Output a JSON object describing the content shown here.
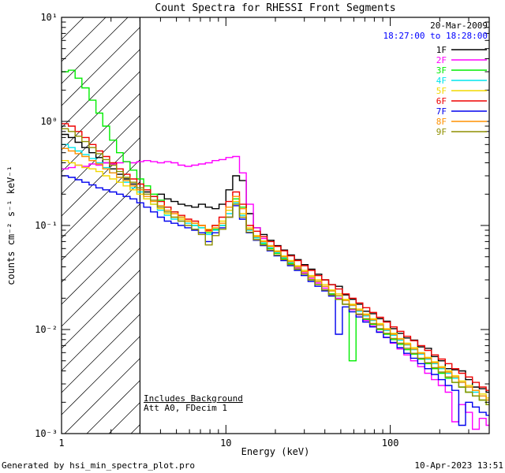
{
  "annotations": {
    "date": "20-Mar-2009",
    "time_range": "18:27:00 to 18:28:00",
    "background_note": "Includes Background",
    "attenuator_note": "Att A0, FDecim 1"
  },
  "footer": {
    "generator": "Generated by hsi_min_spectra_plot.pro",
    "datetime": "10-Apr-2023 13:51"
  },
  "colors": {
    "axis": "#000000",
    "background": "#ffffff",
    "time_text": "#0000ff"
  },
  "chart_data": {
    "type": "line",
    "step": true,
    "title": "Count Spectra for RHESSI Front Segments",
    "xlabel": "Energy (keV)",
    "ylabel": "counts cm⁻² s⁻¹ keV⁻¹",
    "xscale": "log",
    "yscale": "log",
    "xlim": [
      1,
      400
    ],
    "ylim": [
      0.001,
      10
    ],
    "grid": false,
    "legend_position": "top-right",
    "hatch_region_kev": [
      1,
      3
    ],
    "x_ticks": [
      [
        1,
        "1"
      ],
      [
        10,
        "10"
      ],
      [
        100,
        "100"
      ]
    ],
    "y_ticks": [
      [
        10,
        "10¹"
      ],
      [
        1,
        "10⁰"
      ],
      [
        0.1,
        "10⁻¹"
      ],
      [
        0.01,
        "10⁻²"
      ],
      [
        0.001,
        "10⁻³"
      ]
    ],
    "energies_kev": [
      1.0,
      1.1,
      1.21,
      1.33,
      1.47,
      1.62,
      1.78,
      1.96,
      2.16,
      2.37,
      2.61,
      2.87,
      3.16,
      3.48,
      3.83,
      4.22,
      4.64,
      5.11,
      5.62,
      6.19,
      6.81,
      7.5,
      8.25,
      9.08,
      10.0,
      11.0,
      12.1,
      13.3,
      14.7,
      16.2,
      17.8,
      19.6,
      21.6,
      23.7,
      26.1,
      28.7,
      31.6,
      34.8,
      38.3,
      42.2,
      46.4,
      51.1,
      56.2,
      61.9,
      68.1,
      75.0,
      82.5,
      90.8,
      100,
      110,
      121,
      133,
      147,
      162,
      178,
      196,
      216,
      237,
      261,
      287,
      316,
      348,
      383
    ],
    "series": [
      {
        "name": "1F",
        "color": "#000000",
        "values": [
          0.75,
          0.7,
          0.63,
          0.56,
          0.5,
          0.45,
          0.4,
          0.35,
          0.31,
          0.28,
          0.25,
          0.22,
          0.21,
          0.19,
          0.2,
          0.18,
          0.17,
          0.16,
          0.155,
          0.15,
          0.16,
          0.15,
          0.145,
          0.16,
          0.22,
          0.3,
          0.27,
          0.13,
          0.095,
          0.082,
          0.072,
          0.064,
          0.058,
          0.052,
          0.047,
          0.042,
          0.038,
          0.034,
          0.03,
          0.027,
          0.026,
          0.0215,
          0.0195,
          0.0175,
          0.015,
          0.0142,
          0.0127,
          0.012,
          0.0102,
          0.0092,
          0.0083,
          0.0079,
          0.0068,
          0.0066,
          0.0055,
          0.005,
          0.0042,
          0.0041,
          0.004,
          0.0033,
          0.0028,
          0.0027,
          0.0025
        ]
      },
      {
        "name": "2F",
        "color": "#ff00ff",
        "values": [
          0.35,
          0.36,
          0.38,
          0.37,
          0.39,
          0.38,
          0.4,
          0.39,
          0.4,
          0.41,
          0.4,
          0.41,
          0.42,
          0.41,
          0.4,
          0.41,
          0.4,
          0.38,
          0.37,
          0.38,
          0.39,
          0.4,
          0.42,
          0.43,
          0.45,
          0.46,
          0.32,
          0.16,
          0.095,
          0.075,
          0.064,
          0.056,
          0.049,
          0.044,
          0.039,
          0.035,
          0.031,
          0.028,
          0.025,
          0.022,
          0.02,
          0.0175,
          0.0155,
          0.0138,
          0.0122,
          0.0108,
          0.0095,
          0.0084,
          0.0074,
          0.0065,
          0.0057,
          0.005,
          0.0044,
          0.0038,
          0.0033,
          0.0029,
          0.0025,
          0.0013,
          0.0019,
          0.0016,
          0.0011,
          0.0014,
          0.0012
        ]
      },
      {
        "name": "3F",
        "color": "#00ee00",
        "values": [
          3.0,
          3.1,
          2.6,
          2.1,
          1.6,
          1.2,
          0.9,
          0.66,
          0.5,
          0.41,
          0.34,
          0.28,
          0.24,
          0.2,
          0.175,
          0.15,
          0.135,
          0.12,
          0.11,
          0.1,
          0.095,
          0.085,
          0.092,
          0.1,
          0.14,
          0.18,
          0.15,
          0.092,
          0.076,
          0.067,
          0.06,
          0.054,
          0.048,
          0.043,
          0.038,
          0.034,
          0.03,
          0.027,
          0.024,
          0.022,
          0.0195,
          0.0175,
          0.005,
          0.014,
          0.0125,
          0.0112,
          0.01,
          0.009,
          0.008,
          0.0072,
          0.0064,
          0.0058,
          0.0052,
          0.0047,
          0.0042,
          0.0038,
          0.0034,
          0.0031,
          0.0028,
          0.0025,
          0.0023,
          0.0021,
          0.0019
        ]
      },
      {
        "name": "4F",
        "color": "#00e5ee",
        "values": [
          0.6,
          0.56,
          0.52,
          0.48,
          0.44,
          0.4,
          0.36,
          0.32,
          0.29,
          0.26,
          0.23,
          0.21,
          0.18,
          0.16,
          0.14,
          0.125,
          0.115,
          0.11,
          0.105,
          0.1,
          0.095,
          0.082,
          0.09,
          0.1,
          0.13,
          0.165,
          0.125,
          0.09,
          0.076,
          0.068,
          0.061,
          0.055,
          0.049,
          0.044,
          0.04,
          0.036,
          0.032,
          0.029,
          0.026,
          0.0235,
          0.021,
          0.019,
          0.017,
          0.015,
          0.0135,
          0.0122,
          0.011,
          0.0098,
          0.0088,
          0.0079,
          0.0071,
          0.0064,
          0.0058,
          0.0052,
          0.0047,
          0.0042,
          0.0038,
          0.0034,
          0.0031,
          0.0028,
          0.0025,
          0.0023,
          0.0021
        ]
      },
      {
        "name": "5F",
        "color": "#f2d800",
        "values": [
          0.42,
          0.4,
          0.38,
          0.36,
          0.35,
          0.33,
          0.3,
          0.28,
          0.26,
          0.24,
          0.22,
          0.2,
          0.18,
          0.16,
          0.145,
          0.13,
          0.12,
          0.115,
          0.11,
          0.105,
          0.1,
          0.092,
          0.1,
          0.11,
          0.14,
          0.17,
          0.13,
          0.095,
          0.08,
          0.071,
          0.064,
          0.057,
          0.051,
          0.046,
          0.041,
          0.037,
          0.033,
          0.03,
          0.027,
          0.024,
          0.022,
          0.0195,
          0.0175,
          0.0157,
          0.0141,
          0.0127,
          0.0114,
          0.0102,
          0.0092,
          0.0082,
          0.0074,
          0.0067,
          0.006,
          0.0054,
          0.0049,
          0.0044,
          0.004,
          0.0036,
          0.0032,
          0.0029,
          0.0026,
          0.0024,
          0.0022
        ]
      },
      {
        "name": "6F",
        "color": "#ee0000",
        "values": [
          0.95,
          0.9,
          0.8,
          0.7,
          0.6,
          0.52,
          0.46,
          0.4,
          0.35,
          0.31,
          0.28,
          0.25,
          0.22,
          0.19,
          0.17,
          0.15,
          0.135,
          0.125,
          0.115,
          0.11,
          0.1,
          0.09,
          0.1,
          0.12,
          0.17,
          0.21,
          0.16,
          0.1,
          0.088,
          0.078,
          0.07,
          0.063,
          0.057,
          0.051,
          0.046,
          0.041,
          0.037,
          0.033,
          0.03,
          0.027,
          0.0245,
          0.022,
          0.02,
          0.018,
          0.0162,
          0.0146,
          0.0131,
          0.0118,
          0.0106,
          0.0096,
          0.0086,
          0.0078,
          0.007,
          0.0063,
          0.0057,
          0.0052,
          0.0047,
          0.0042,
          0.0038,
          0.0035,
          0.0031,
          0.0028,
          0.0026
        ]
      },
      {
        "name": "7F",
        "color": "#0000ee",
        "values": [
          0.3,
          0.29,
          0.275,
          0.26,
          0.245,
          0.23,
          0.22,
          0.21,
          0.2,
          0.19,
          0.18,
          0.165,
          0.15,
          0.135,
          0.12,
          0.11,
          0.105,
          0.1,
          0.095,
          0.09,
          0.085,
          0.07,
          0.085,
          0.095,
          0.12,
          0.155,
          0.115,
          0.085,
          0.072,
          0.064,
          0.057,
          0.051,
          0.046,
          0.041,
          0.037,
          0.033,
          0.029,
          0.026,
          0.0235,
          0.021,
          0.009,
          0.0165,
          0.0148,
          0.0132,
          0.0118,
          0.0106,
          0.0094,
          0.0084,
          0.0075,
          0.0067,
          0.0059,
          0.0053,
          0.0047,
          0.0042,
          0.0037,
          0.0033,
          0.0029,
          0.0026,
          0.0012,
          0.002,
          0.0018,
          0.0016,
          0.0015
        ]
      },
      {
        "name": "8F",
        "color": "#ff9100",
        "values": [
          0.55,
          0.52,
          0.49,
          0.46,
          0.42,
          0.39,
          0.35,
          0.32,
          0.29,
          0.27,
          0.24,
          0.22,
          0.19,
          0.17,
          0.155,
          0.14,
          0.13,
          0.12,
          0.11,
          0.105,
          0.1,
          0.088,
          0.095,
          0.105,
          0.15,
          0.19,
          0.145,
          0.092,
          0.078,
          0.07,
          0.063,
          0.056,
          0.05,
          0.045,
          0.04,
          0.036,
          0.032,
          0.029,
          0.026,
          0.0235,
          0.0212,
          0.019,
          0.0171,
          0.0153,
          0.0138,
          0.0124,
          0.0111,
          0.01,
          0.009,
          0.0081,
          0.0072,
          0.0065,
          0.0059,
          0.0053,
          0.0048,
          0.0043,
          0.0039,
          0.0035,
          0.0031,
          0.0028,
          0.0026,
          0.0023,
          0.0021
        ]
      },
      {
        "name": "9F",
        "color": "#8f8f00",
        "values": [
          0.85,
          0.8,
          0.72,
          0.64,
          0.56,
          0.49,
          0.43,
          0.38,
          0.33,
          0.29,
          0.26,
          0.23,
          0.2,
          0.175,
          0.15,
          0.135,
          0.12,
          0.11,
          0.1,
          0.092,
          0.082,
          0.065,
          0.08,
          0.092,
          0.12,
          0.16,
          0.12,
          0.086,
          0.073,
          0.065,
          0.058,
          0.052,
          0.047,
          0.042,
          0.038,
          0.034,
          0.03,
          0.027,
          0.024,
          0.0215,
          0.0195,
          0.0175,
          0.0158,
          0.0141,
          0.0127,
          0.0114,
          0.0102,
          0.0092,
          0.0082,
          0.0074,
          0.0066,
          0.0059,
          0.0053,
          0.0048,
          0.0043,
          0.0039,
          0.0035,
          0.0031,
          0.0028,
          0.0025,
          0.0023,
          0.0021,
          0.0019
        ]
      }
    ]
  }
}
